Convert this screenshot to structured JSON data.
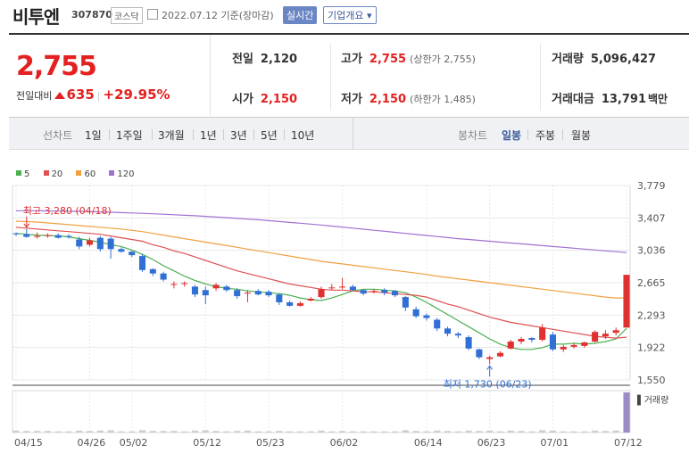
{
  "header": {
    "name": "비투엔",
    "code": "307870",
    "market": "코스닥",
    "date": "2022.07.12 기준(장마감)",
    "realtime_button": "실시간",
    "overview_button": "기업개요 ▾"
  },
  "quote": {
    "price": "2,755",
    "change_label": "전일대비",
    "change_value": "635",
    "change_pct": "+29.95%",
    "prev_close_label": "전일",
    "prev_close": "2,120",
    "open_label": "시가",
    "open": "2,150",
    "high_label": "고가",
    "high": "2,755",
    "upper_limit": "(상한가 2,755)",
    "low_label": "저가",
    "low": "2,150",
    "lower_limit": "(하한가 1,485)",
    "volume_label": "거래량",
    "volume": "5,096,427",
    "amount_label": "거래대금",
    "amount": "13,791",
    "amount_unit": "백만"
  },
  "toolbar": {
    "line_chart_label": "선차트",
    "periods": [
      "1일",
      "1주일",
      "3개월",
      "1년",
      "3년",
      "5년",
      "10년"
    ],
    "candle_label": "봉차트",
    "candle_types": [
      "일봉",
      "주봉",
      "월봉"
    ],
    "active_candle": "일봉"
  },
  "chart_data": {
    "type": "candlestick",
    "legend": [
      {
        "name": "5",
        "color": "#4caf50"
      },
      {
        "name": "20",
        "color": "#e05050"
      },
      {
        "name": "60",
        "color": "#f0a040"
      },
      {
        "name": "120",
        "color": "#a070d0"
      }
    ],
    "y_ticks": [
      3779,
      3407,
      3036,
      2665,
      2293,
      1922,
      1550
    ],
    "ylim": [
      1550,
      3779
    ],
    "x_ticks": [
      "04/15",
      "04/26",
      "05/02",
      "05/12",
      "05/23",
      "06/02",
      "06/14",
      "06/23",
      "07/01",
      "07/12"
    ],
    "x_tick_index": [
      0,
      7,
      11,
      18,
      24,
      31,
      39,
      45,
      51,
      58
    ],
    "candles": [
      {
        "o": 3230,
        "h": 3240,
        "l": 3200,
        "c": 3220
      },
      {
        "o": 3220,
        "h": 3280,
        "l": 3180,
        "c": 3190
      },
      {
        "o": 3190,
        "h": 3240,
        "l": 3170,
        "c": 3200
      },
      {
        "o": 3200,
        "h": 3230,
        "l": 3180,
        "c": 3210
      },
      {
        "o": 3210,
        "h": 3230,
        "l": 3170,
        "c": 3180
      },
      {
        "o": 3200,
        "h": 3220,
        "l": 3170,
        "c": 3190
      },
      {
        "o": 3160,
        "h": 3190,
        "l": 3050,
        "c": 3080
      },
      {
        "o": 3100,
        "h": 3180,
        "l": 3080,
        "c": 3150
      },
      {
        "o": 3180,
        "h": 3200,
        "l": 3020,
        "c": 3050
      },
      {
        "o": 3170,
        "h": 3190,
        "l": 2940,
        "c": 3050
      },
      {
        "o": 3050,
        "h": 3070,
        "l": 3010,
        "c": 3020
      },
      {
        "o": 3020,
        "h": 3030,
        "l": 2960,
        "c": 2980
      },
      {
        "o": 2970,
        "h": 2990,
        "l": 2790,
        "c": 2810
      },
      {
        "o": 2820,
        "h": 2830,
        "l": 2740,
        "c": 2770
      },
      {
        "o": 2770,
        "h": 2790,
        "l": 2680,
        "c": 2700
      },
      {
        "o": 2640,
        "h": 2680,
        "l": 2600,
        "c": 2650
      },
      {
        "o": 2650,
        "h": 2680,
        "l": 2620,
        "c": 2660
      },
      {
        "o": 2620,
        "h": 2640,
        "l": 2500,
        "c": 2530
      },
      {
        "o": 2580,
        "h": 2620,
        "l": 2420,
        "c": 2520
      },
      {
        "o": 2600,
        "h": 2660,
        "l": 2570,
        "c": 2640
      },
      {
        "o": 2620,
        "h": 2640,
        "l": 2560,
        "c": 2580
      },
      {
        "o": 2580,
        "h": 2600,
        "l": 2480,
        "c": 2510
      },
      {
        "o": 2540,
        "h": 2580,
        "l": 2440,
        "c": 2550
      },
      {
        "o": 2570,
        "h": 2590,
        "l": 2520,
        "c": 2530
      },
      {
        "o": 2560,
        "h": 2580,
        "l": 2500,
        "c": 2520
      },
      {
        "o": 2530,
        "h": 2540,
        "l": 2410,
        "c": 2440
      },
      {
        "o": 2440,
        "h": 2460,
        "l": 2390,
        "c": 2400
      },
      {
        "o": 2400,
        "h": 2450,
        "l": 2390,
        "c": 2430
      },
      {
        "o": 2460,
        "h": 2500,
        "l": 2450,
        "c": 2480
      },
      {
        "o": 2500,
        "h": 2620,
        "l": 2480,
        "c": 2590
      },
      {
        "o": 2600,
        "h": 2650,
        "l": 2580,
        "c": 2610
      },
      {
        "o": 2610,
        "h": 2720,
        "l": 2590,
        "c": 2620
      },
      {
        "o": 2620,
        "h": 2640,
        "l": 2570,
        "c": 2580
      },
      {
        "o": 2580,
        "h": 2590,
        "l": 2520,
        "c": 2540
      },
      {
        "o": 2560,
        "h": 2590,
        "l": 2540,
        "c": 2570
      },
      {
        "o": 2580,
        "h": 2600,
        "l": 2520,
        "c": 2550
      },
      {
        "o": 2570,
        "h": 2580,
        "l": 2500,
        "c": 2520
      },
      {
        "o": 2500,
        "h": 2510,
        "l": 2340,
        "c": 2380
      },
      {
        "o": 2360,
        "h": 2390,
        "l": 2260,
        "c": 2280
      },
      {
        "o": 2290,
        "h": 2310,
        "l": 2230,
        "c": 2260
      },
      {
        "o": 2240,
        "h": 2260,
        "l": 2110,
        "c": 2140
      },
      {
        "o": 2140,
        "h": 2160,
        "l": 2050,
        "c": 2080
      },
      {
        "o": 2080,
        "h": 2100,
        "l": 2030,
        "c": 2060
      },
      {
        "o": 2040,
        "h": 2060,
        "l": 1890,
        "c": 1910
      },
      {
        "o": 1900,
        "h": 1910,
        "l": 1790,
        "c": 1810
      },
      {
        "o": 1790,
        "h": 1830,
        "l": 1730,
        "c": 1810
      },
      {
        "o": 1820,
        "h": 1880,
        "l": 1810,
        "c": 1860
      },
      {
        "o": 1910,
        "h": 2010,
        "l": 1900,
        "c": 1990
      },
      {
        "o": 1990,
        "h": 2040,
        "l": 1960,
        "c": 2020
      },
      {
        "o": 2030,
        "h": 2040,
        "l": 1980,
        "c": 2010
      },
      {
        "o": 2010,
        "h": 2190,
        "l": 1990,
        "c": 2150
      },
      {
        "o": 2070,
        "h": 2100,
        "l": 1880,
        "c": 1900
      },
      {
        "o": 1900,
        "h": 1950,
        "l": 1870,
        "c": 1930
      },
      {
        "o": 1930,
        "h": 1970,
        "l": 1910,
        "c": 1950
      },
      {
        "o": 1940,
        "h": 1990,
        "l": 1920,
        "c": 1980
      },
      {
        "o": 1990,
        "h": 2120,
        "l": 1980,
        "c": 2100
      },
      {
        "o": 2050,
        "h": 2120,
        "l": 2020,
        "c": 2080
      },
      {
        "o": 2090,
        "h": 2150,
        "l": 2060,
        "c": 2120
      },
      {
        "o": 2150,
        "h": 2755,
        "l": 2150,
        "c": 2755
      }
    ],
    "ma": {
      "5": [
        3230,
        3220,
        3210,
        3205,
        3200,
        3190,
        3170,
        3150,
        3130,
        3100,
        3080,
        3040,
        2990,
        2930,
        2860,
        2800,
        2740,
        2690,
        2650,
        2620,
        2600,
        2590,
        2570,
        2560,
        2550,
        2540,
        2520,
        2490,
        2470,
        2460,
        2490,
        2530,
        2570,
        2590,
        2590,
        2580,
        2570,
        2550,
        2500,
        2440,
        2370,
        2300,
        2230,
        2160,
        2090,
        2020,
        1960,
        1920,
        1900,
        1900,
        1920,
        1960,
        1960,
        1970,
        1960,
        1970,
        1990,
        2020,
        2140
      ],
      "20": [
        3300,
        3290,
        3280,
        3270,
        3260,
        3250,
        3240,
        3230,
        3220,
        3200,
        3180,
        3160,
        3140,
        3100,
        3070,
        3030,
        3000,
        2960,
        2920,
        2880,
        2840,
        2800,
        2770,
        2740,
        2710,
        2680,
        2650,
        2630,
        2610,
        2590,
        2580,
        2580,
        2570,
        2560,
        2560,
        2550,
        2540,
        2530,
        2520,
        2500,
        2460,
        2420,
        2390,
        2350,
        2310,
        2270,
        2240,
        2210,
        2190,
        2170,
        2150,
        2130,
        2110,
        2090,
        2070,
        2050,
        2040,
        2030,
        2040
      ],
      "60": [
        3370,
        3365,
        3360,
        3350,
        3340,
        3330,
        3320,
        3310,
        3300,
        3290,
        3280,
        3265,
        3250,
        3230,
        3210,
        3190,
        3170,
        3150,
        3130,
        3110,
        3090,
        3070,
        3050,
        3030,
        3010,
        2990,
        2970,
        2950,
        2930,
        2910,
        2895,
        2880,
        2865,
        2850,
        2835,
        2820,
        2805,
        2790,
        2775,
        2760,
        2740,
        2725,
        2710,
        2695,
        2680,
        2665,
        2650,
        2635,
        2620,
        2605,
        2590,
        2575,
        2560,
        2545,
        2530,
        2515,
        2500,
        2490,
        2490
      ],
      "120": [
        3490,
        3490,
        3490,
        3488,
        3486,
        3484,
        3482,
        3480,
        3476,
        3472,
        3468,
        3464,
        3460,
        3455,
        3450,
        3444,
        3438,
        3432,
        3425,
        3418,
        3410,
        3402,
        3394,
        3386,
        3376,
        3366,
        3356,
        3346,
        3336,
        3326,
        3314,
        3302,
        3290,
        3278,
        3266,
        3254,
        3242,
        3230,
        3218,
        3206,
        3194,
        3182,
        3170,
        3160,
        3150,
        3140,
        3130,
        3120,
        3110,
        3100,
        3090,
        3080,
        3070,
        3060,
        3050,
        3040,
        3030,
        3020,
        3010
      ]
    },
    "volume": [
      5,
      4,
      4,
      4,
      3,
      3,
      5,
      4,
      5,
      6,
      3,
      3,
      6,
      4,
      4,
      4,
      3,
      5,
      6,
      4,
      3,
      4,
      5,
      3,
      3,
      4,
      3,
      3,
      3,
      5,
      3,
      4,
      3,
      3,
      3,
      3,
      3,
      6,
      4,
      3,
      5,
      4,
      3,
      5,
      4,
      5,
      3,
      5,
      4,
      3,
      6,
      5,
      3,
      3,
      3,
      5,
      4,
      5,
      100
    ],
    "volume_label": "거래량",
    "annotations": {
      "high_text": "최고 3,280 (04/18)",
      "low_text": "최저 1,730 (06/23)"
    }
  }
}
